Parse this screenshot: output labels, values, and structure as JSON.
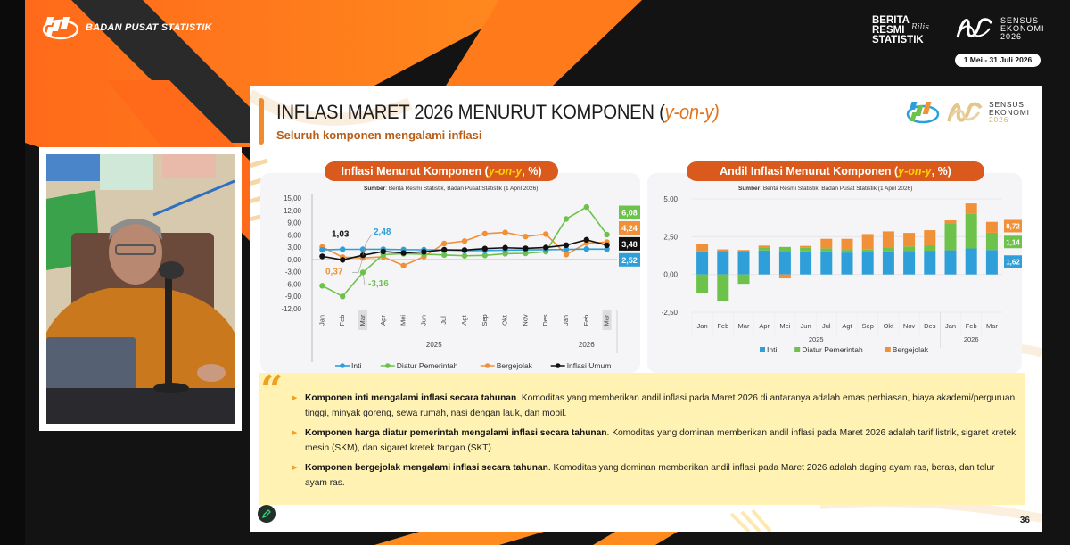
{
  "header": {
    "org_name": "BADAN PUSAT STATISTIK",
    "brs_lines": [
      "BERITA",
      "RESMI",
      "STATISTIK"
    ],
    "brs_script": "Rilis",
    "census_lines": [
      "SENSUS",
      "EKONOMI",
      "2026"
    ],
    "census_date": "1 Mei - 31 Juli 2026"
  },
  "slide": {
    "title_main": "INFLASI MARET 2026 MENURUT KOMPONEN (",
    "title_yoy": "y-on-y",
    "title_close": ")",
    "subtitle": "Seluruh komponen mengalami inflasi",
    "logo_census_lines": [
      "SENSUS",
      "EKONOMI",
      "2026"
    ],
    "page_number": "36",
    "quote": {
      "bullets": [
        {
          "bold": "Komponen inti mengalami inflasi secara tahunan",
          "text": ". Komoditas yang memberikan andil inflasi pada Maret 2026 di antaranya adalah emas perhiasan, biaya akademi/perguruan tinggi, minyak goreng, sewa rumah, nasi dengan lauk, dan mobil."
        },
        {
          "bold": "Komponen harga diatur pemerintah mengalami inflasi secara tahunan",
          "text": ". Komoditas yang dominan memberikan andil inflasi pada Maret 2026 adalah tarif listrik, sigaret kretek mesin (SKM), dan sigaret kretek tangan (SKT)."
        },
        {
          "bold": "Komponen bergejolak mengalami inflasi secara tahunan",
          "text": ". Komoditas yang dominan memberikan andil inflasi pada Maret 2026 adalah daging ayam ras, beras, dan telur ayam ras."
        }
      ]
    }
  },
  "colors": {
    "inti": "#2e9fd8",
    "diatur": "#6cc24a",
    "bergejolak": "#f0913a",
    "umum": "#111111",
    "accent": "#d95a1c"
  },
  "chart_data": [
    {
      "type": "line",
      "title": "Inflasi Menurut Komponen (y-on-y, %)",
      "title_prefix": "Inflasi Menurut Komponen (",
      "title_em": "y-on-y",
      "title_suffix": ", %)",
      "source_label": "Sumber",
      "source_text": ": Berita Resmi Statistik, Badan Pusat Statistik (1 April 2026)",
      "categories": [
        "Jan",
        "Feb",
        "Mar",
        "Apr",
        "Mei",
        "Jun",
        "Jul",
        "Agt",
        "Sep",
        "Okt",
        "Nov",
        "Des",
        "Jan",
        "Feb",
        "Mar"
      ],
      "year_groups": [
        {
          "label": "2025",
          "span": 12
        },
        {
          "label": "2026",
          "span": 3
        }
      ],
      "highlighted_categories": [
        2,
        14
      ],
      "yticks": [
        "15,00",
        "12,00",
        "9,00",
        "6,00",
        "3,00",
        "0,00",
        "-3,00",
        "-6,00",
        "-9,00",
        "-12,00"
      ],
      "ylim": [
        -12,
        15
      ],
      "grid": false,
      "legend_position": "bottom",
      "series": [
        {
          "name": "Inti",
          "color": "#2e9fd8",
          "values": [
            2.36,
            2.48,
            2.48,
            2.5,
            2.4,
            2.37,
            2.32,
            2.17,
            2.19,
            2.28,
            2.36,
            2.38,
            2.45,
            2.55,
            2.52
          ]
        },
        {
          "name": "Diatur Pemerintah",
          "color": "#6cc24a",
          "values": [
            -6.41,
            -9.02,
            -3.16,
            1.2,
            1.4,
            1.3,
            1.1,
            0.9,
            1.0,
            1.4,
            1.5,
            1.9,
            9.9,
            12.8,
            6.08
          ]
        },
        {
          "name": "Bergejolak",
          "color": "#f0913a",
          "values": [
            3.07,
            0.56,
            0.37,
            0.64,
            -1.5,
            0.7,
            3.9,
            4.5,
            6.3,
            6.6,
            5.6,
            6.2,
            1.2,
            4.0,
            4.24
          ]
        },
        {
          "name": "Inflasi Umum",
          "color": "#111111",
          "values": [
            0.76,
            -0.09,
            1.03,
            1.95,
            1.6,
            1.87,
            2.37,
            2.31,
            2.65,
            2.86,
            2.72,
            2.92,
            3.5,
            4.8,
            3.48
          ]
        }
      ],
      "annotations": [
        {
          "label": "1,03",
          "series": "Inflasi Umum",
          "index": 2
        },
        {
          "label": "2,48",
          "series": "Inti",
          "index": 2
        },
        {
          "label": "0,37",
          "series": "Bergejolak",
          "index": 2
        },
        {
          "label": "-3,16",
          "series": "Diatur Pemerintah",
          "index": 2
        },
        {
          "label": "6,08",
          "series": "Diatur Pemerintah",
          "index": 14
        },
        {
          "label": "4,24",
          "series": "Bergejolak",
          "index": 14
        },
        {
          "label": "3,48",
          "series": "Inflasi Umum",
          "index": 14
        },
        {
          "label": "2,52",
          "series": "Inti",
          "index": 14
        }
      ]
    },
    {
      "type": "bar",
      "stacked": true,
      "title": "Andil Inflasi Menurut Komponen (y-on-y, %)",
      "title_prefix": "Andil Inflasi Menurut Komponen (",
      "title_em": "y-on-y",
      "title_suffix": ", %)",
      "source_label": "Sumber",
      "source_text": ": Berita Resmi Statistik, Badan Pusat Statistik (1 April 2026)",
      "categories": [
        "Jan",
        "Feb",
        "Mar",
        "Apr",
        "Mei",
        "Jun",
        "Jul",
        "Agt",
        "Sep",
        "Okt",
        "Nov",
        "Des",
        "Jan",
        "Feb",
        "Mar"
      ],
      "year_groups": [
        {
          "label": "2025",
          "span": 12
        },
        {
          "label": "2026",
          "span": 3
        }
      ],
      "yticks": [
        "5,00",
        "2,50",
        "0,00",
        "-2,50"
      ],
      "ylim": [
        -2.5,
        5
      ],
      "grid": true,
      "legend_position": "bottom",
      "series": [
        {
          "name": "Inti",
          "color": "#2e9fd8",
          "values": [
            1.52,
            1.56,
            1.56,
            1.59,
            1.54,
            1.53,
            1.52,
            1.45,
            1.46,
            1.52,
            1.56,
            1.57,
            1.6,
            1.72,
            1.62
          ]
        },
        {
          "name": "Diatur Pemerintah",
          "color": "#6cc24a",
          "values": [
            -1.24,
            -1.78,
            -0.62,
            0.21,
            0.28,
            0.24,
            0.21,
            0.18,
            0.19,
            0.26,
            0.29,
            0.36,
            1.78,
            2.32,
            1.14
          ]
        },
        {
          "name": "Bergejolak",
          "color": "#f0913a",
          "values": [
            0.48,
            0.1,
            0.06,
            0.11,
            -0.26,
            0.12,
            0.63,
            0.73,
            1.02,
            1.07,
            0.9,
            1.0,
            0.2,
            0.66,
            0.72
          ]
        }
      ],
      "annotations": [
        {
          "label": "0,72",
          "series": "Bergejolak",
          "index": 14
        },
        {
          "label": "1,14",
          "series": "Diatur Pemerintah",
          "index": 14
        },
        {
          "label": "1,62",
          "series": "Inti",
          "index": 14
        }
      ]
    }
  ]
}
